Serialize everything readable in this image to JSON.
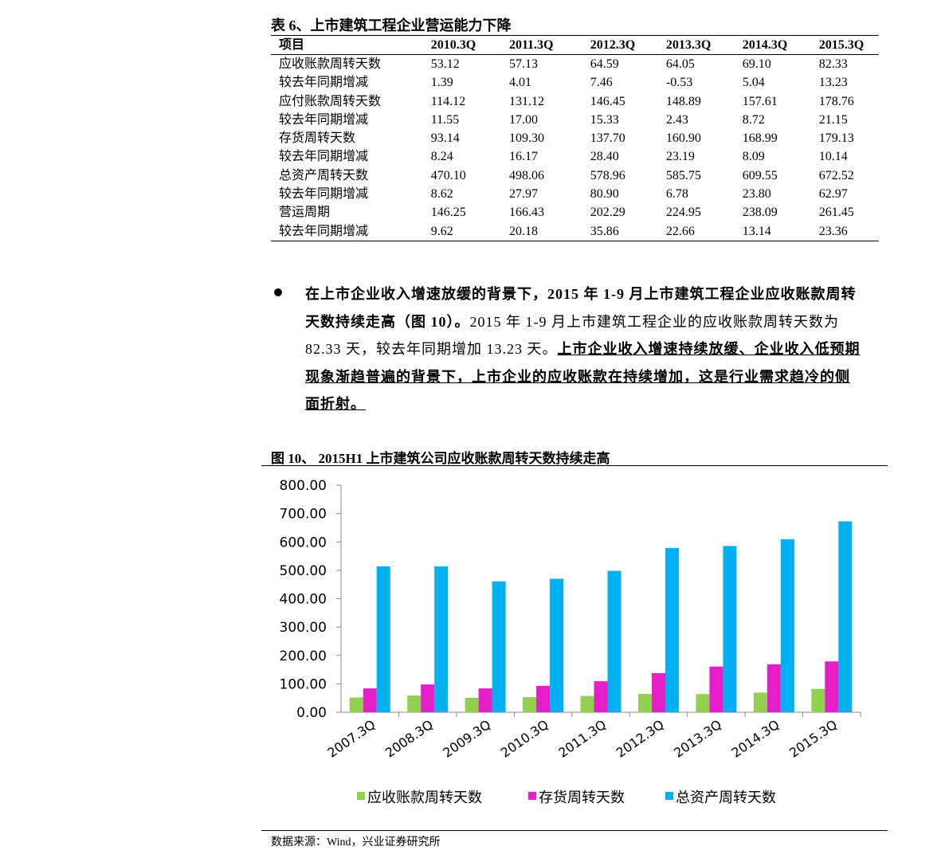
{
  "table": {
    "title": "表 6、上市建筑工程企业营运能力下降",
    "header": [
      "项目",
      "2010.3Q",
      "2011.3Q",
      "2012.3Q",
      "2013.3Q",
      "2014.3Q",
      "2015.3Q"
    ],
    "rows": [
      [
        "应收账款周转天数",
        "53.12",
        "57.13",
        "64.59",
        "64.05",
        "69.10",
        "82.33"
      ],
      [
        "较去年同期增减",
        "1.39",
        "4.01",
        "7.46",
        "-0.53",
        "5.04",
        "13.23"
      ],
      [
        "应付账款周转天数",
        "114.12",
        "131.12",
        "146.45",
        "148.89",
        "157.61",
        "178.76"
      ],
      [
        "较去年同期增减",
        "11.55",
        "17.00",
        "15.33",
        "2.43",
        "8.72",
        "21.15"
      ],
      [
        "存货周转天数",
        "93.14",
        "109.30",
        "137.70",
        "160.90",
        "168.99",
        "179.13"
      ],
      [
        "较去年同期增减",
        "8.24",
        "16.17",
        "28.40",
        "23.19",
        "8.09",
        "10.14"
      ],
      [
        "总资产周转天数",
        "470.10",
        "498.06",
        "578.96",
        "585.75",
        "609.55",
        "672.52"
      ],
      [
        "较去年同期增减",
        "8.62",
        "27.97",
        "80.90",
        "6.78",
        "23.80",
        "62.97"
      ],
      [
        "营运周期",
        "146.25",
        "166.43",
        "202.29",
        "224.95",
        "238.09",
        "261.45"
      ],
      [
        "较去年同期增减",
        "9.62",
        "20.18",
        "35.86",
        "22.66",
        "13.14",
        "23.36"
      ]
    ]
  },
  "paragraph": {
    "bold": "在上市企业收入增速放缓的背景下，2015 年 1-9 月上市建筑工程企业应收账款周转天数持续走高（图 10）。",
    "normal": "2015 年 1-9 月上市建筑工程企业的应收账款周转天数为 82.33 天，较去年同期增加 13.23 天。",
    "underlined": "上市企业收入增速持续放缓、企业收入低预期现象渐趋普遍的背景下，上市企业的应收账款在持续增加，这是行业需求趋冷的侧面折射。"
  },
  "chart_data": {
    "type": "bar",
    "title": "图 10、 2015H1 上市建筑公司应收账款周转天数持续走高",
    "categories": [
      "2007.3Q",
      "2008.3Q",
      "2009.3Q",
      "2010.3Q",
      "2011.3Q",
      "2012.3Q",
      "2013.3Q",
      "2014.3Q",
      "2015.3Q"
    ],
    "series": [
      {
        "name": "应收账款周转天数",
        "color": "#92d050",
        "values": [
          52,
          59,
          51,
          53.12,
          57.13,
          64.59,
          64.05,
          69.1,
          82.33
        ]
      },
      {
        "name": "存货周转天数",
        "color": "#e61ec8",
        "values": [
          84,
          98,
          84,
          93.14,
          109.3,
          137.7,
          160.9,
          168.99,
          179.13
        ]
      },
      {
        "name": "总资产周转天数",
        "color": "#00b0f0",
        "values": [
          514,
          514,
          461,
          470.1,
          498.06,
          578.96,
          585.75,
          609.55,
          672.52
        ]
      }
    ],
    "ylim": [
      0,
      800
    ],
    "yticks": [
      {
        "value": 0,
        "label": "0.00"
      },
      {
        "value": 100,
        "label": "100.00"
      },
      {
        "value": 200,
        "label": "200.00"
      },
      {
        "value": 300,
        "label": "300.00"
      },
      {
        "value": 400,
        "label": "400.00"
      },
      {
        "value": 500,
        "label": "500.00"
      },
      {
        "value": 600,
        "label": "600.00"
      },
      {
        "value": 700,
        "label": "700.00"
      },
      {
        "value": 800,
        "label": "800.00"
      }
    ],
    "legend": "bottom",
    "grid": false
  },
  "source": "数据来源：Wind，兴业证券研究所"
}
